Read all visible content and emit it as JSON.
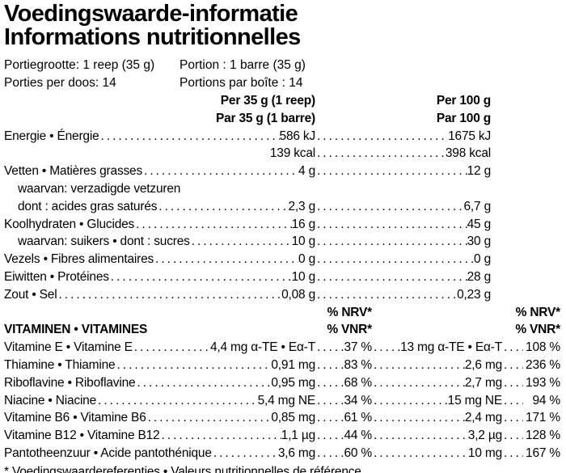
{
  "colors": {
    "text": "#000000",
    "background": "#ffffff"
  },
  "title": {
    "line1": "Voedingswaarde-informatie",
    "line2": "Informations nutritionnelles"
  },
  "serving": {
    "nl": [
      "Portiegrootte: 1 reep (35 g)",
      "Porties per doos: 14"
    ],
    "fr": [
      "Portion : 1 barre (35 g)",
      "Portions par boîte : 14"
    ]
  },
  "columns": {
    "per35_nl": "Per 35 g (1 reep)",
    "per35_fr": "Par 35 g (1 barre)",
    "per100_nl": "Per 100 g",
    "per100_fr": "Par 100 g"
  },
  "nutrients": [
    {
      "label": "Energie • Énergie",
      "v35": "586 kJ",
      "v100": "1675 kJ",
      "indent": false,
      "no_lead": false
    },
    {
      "label": "",
      "v35": "139 kcal",
      "v100": "398 kcal",
      "indent": false,
      "no_lead": true
    },
    {
      "label": "Vetten • Matières grasses",
      "v35": "4 g",
      "v100": "12 g",
      "indent": false,
      "no_lead": false
    },
    {
      "label": "waarvan: verzadigde vetzuren",
      "v35": "",
      "v100": "",
      "indent": true,
      "no_lead": false
    },
    {
      "label": "dont : acides gras saturés",
      "v35": "2,3 g",
      "v100": "6,7 g",
      "indent": true,
      "no_lead": false
    },
    {
      "label": "Koolhydraten • Glucides",
      "v35": "16 g",
      "v100": "45 g",
      "indent": false,
      "no_lead": false
    },
    {
      "label": "waarvan: suikers • dont : sucres",
      "v35": "10 g",
      "v100": "30 g",
      "indent": true,
      "no_lead": false
    },
    {
      "label": "Vezels • Fibres alimentaires",
      "v35": "0 g",
      "v100": "0 g",
      "indent": false,
      "no_lead": false
    },
    {
      "label": "Eiwitten • Protéines",
      "v35": "10 g",
      "v100": "28 g",
      "indent": false,
      "no_lead": false
    },
    {
      "label": "Zout • Sel",
      "v35": "0,08 g",
      "v100": "0,23 g",
      "indent": false,
      "no_lead": false
    }
  ],
  "vitamins_header": {
    "section": "VITAMINEN • VITAMINES",
    "nrv": "% NRV*",
    "vnr": "% VNR*"
  },
  "vitamins": [
    {
      "label": "Vitamine E • Vitamine E",
      "v35": "4,4 mg α-TE • Eα-T",
      "p35": "37 %",
      "v100": "13 mg α-TE • Eα-T",
      "p100": "108 %"
    },
    {
      "label": "Thiamine • Thiamine",
      "v35": "0,91 mg",
      "p35": "83 %",
      "v100": "2,6 mg",
      "p100": "236 %"
    },
    {
      "label": "Riboflavine • Riboflavine",
      "v35": "0,95 mg",
      "p35": "68 %",
      "v100": "2,7 mg",
      "p100": "193 %"
    },
    {
      "label": "Niacine • Niacine",
      "v35": "5,4 mg NE",
      "p35": "34 %",
      "v100": "15 mg NE",
      "p100": "94 %"
    },
    {
      "label": "Vitamine B6 • Vitamine B6",
      "v35": "0,85 mg",
      "p35": "61 %",
      "v100": "2,4 mg",
      "p100": "171 %"
    },
    {
      "label": "Vitamine B12 • Vitamine B12",
      "v35": "1,1 µg",
      "p35": "44 %",
      "v100": "3,2 µg",
      "p100": "128 %"
    },
    {
      "label": "Pantotheenzuur • Acide pantothénique",
      "v35": "3,6 mg",
      "p35": "60 %",
      "v100": "10 mg",
      "p100": "167 %"
    }
  ],
  "footnote": "* Voedingswaardereferenties • Valeurs nutritionnelles de référence"
}
